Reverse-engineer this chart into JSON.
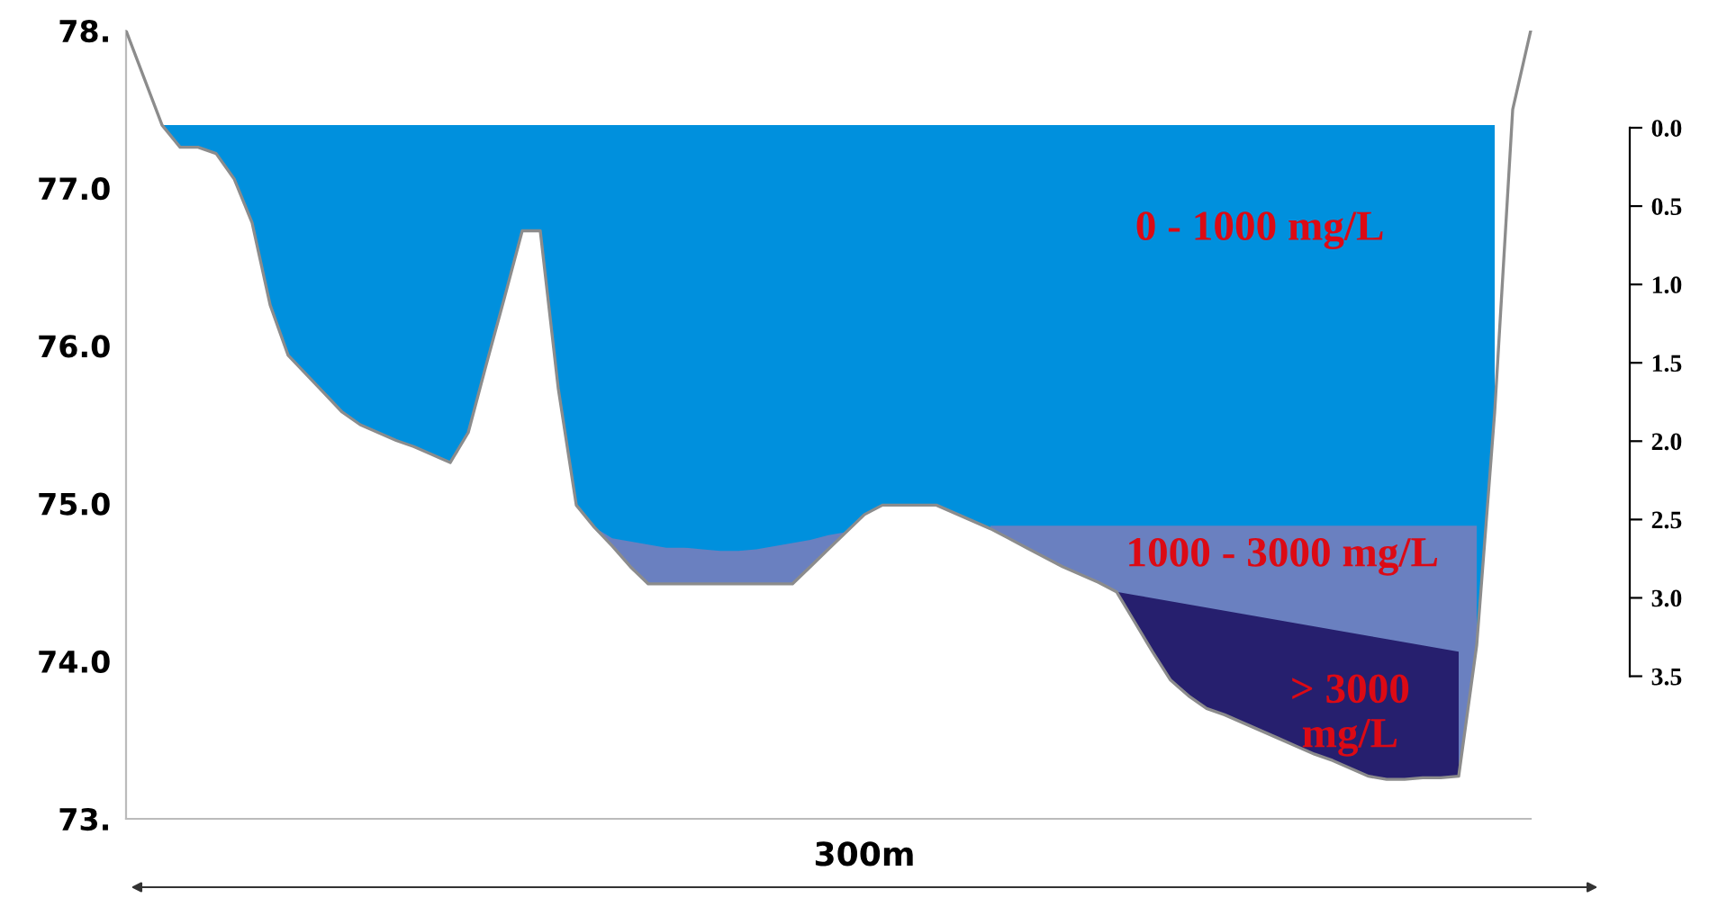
{
  "chart_data": {
    "type": "area",
    "categories": [
      null,
      null,
      null,
      null,
      null,
      null,
      null,
      null,
      null,
      null,
      null,
      null,
      null,
      null,
      null,
      null,
      null,
      null,
      null,
      null,
      null,
      null,
      null,
      null,
      null,
      null,
      null,
      null,
      null,
      null,
      null,
      null,
      null,
      null,
      null,
      null,
      null,
      null,
      null,
      null,
      null,
      null,
      null,
      null,
      null,
      null,
      null,
      null,
      null,
      null,
      null,
      null,
      null,
      null,
      null,
      null,
      null,
      null,
      null,
      null,
      null,
      null,
      null,
      null,
      null,
      null,
      null,
      null,
      null,
      null,
      null,
      null,
      null,
      null,
      null,
      null,
      null,
      null,
      null
    ],
    "ylim": [
      73,
      78
    ],
    "yticks": [
      {
        "value": 73,
        "label": "73."
      },
      {
        "value": 74,
        "label": "74.0"
      },
      {
        "value": 75,
        "label": "75.0"
      },
      {
        "value": 76,
        "label": "76.0"
      },
      {
        "value": 77,
        "label": "77.0"
      },
      {
        "value": 78,
        "label": "78."
      }
    ],
    "y2lim": [
      4.41,
      -0.62
    ],
    "y2ticks": [
      {
        "value": 0,
        "label": "0.0"
      },
      {
        "value": 0.5,
        "label": "0.5"
      },
      {
        "value": 1,
        "label": "1.0"
      },
      {
        "value": 1.5,
        "label": "1.5"
      },
      {
        "value": 2,
        "label": "2.0"
      },
      {
        "value": 2.5,
        "label": "2.5"
      },
      {
        "value": 3,
        "label": "3.0"
      },
      {
        "value": 3.5,
        "label": "3.5"
      }
    ],
    "grid": false,
    "legend": false,
    "annotations": [
      "300m"
    ],
    "series": [
      {
        "type": "line",
        "color": "#8c8c8c",
        "values": [
          78.0,
          77.7,
          77.4,
          77.26,
          77.26,
          77.22,
          77.06,
          76.78,
          76.26,
          75.94,
          75.82,
          75.7,
          75.58,
          75.5,
          75.45,
          75.4,
          75.36,
          75.31,
          75.26,
          75.45,
          75.88,
          76.3,
          76.73,
          76.73,
          75.73,
          74.99,
          74.85,
          74.73,
          74.6,
          74.49,
          74.49,
          74.49,
          74.49,
          74.49,
          74.49,
          74.49,
          74.49,
          74.49,
          74.6,
          74.71,
          74.82,
          74.93,
          74.99,
          74.99,
          74.99,
          74.99,
          74.94,
          74.89,
          74.84,
          74.78,
          74.72,
          74.66,
          74.6,
          74.55,
          74.5,
          74.44,
          74.25,
          74.06,
          73.88,
          73.78,
          73.7,
          73.66,
          73.61,
          73.56,
          73.51,
          73.46,
          73.41,
          73.37,
          73.32,
          73.27,
          73.25,
          73.25,
          73.26,
          73.26,
          73.27,
          74.1,
          75.58,
          77.5,
          78.0
        ]
      },
      {
        "name": "0 - 1000 mg/L",
        "color": "#0090dd",
        "values": [
          null,
          null,
          77.4,
          77.4,
          77.4,
          77.4,
          77.4,
          77.4,
          77.4,
          77.4,
          77.4,
          77.4,
          77.4,
          77.4,
          77.4,
          77.4,
          77.4,
          77.4,
          77.4,
          77.4,
          77.4,
          77.4,
          77.4,
          77.4,
          77.4,
          77.4,
          77.4,
          77.4,
          77.4,
          77.4,
          77.4,
          77.4,
          77.4,
          77.4,
          77.4,
          77.4,
          77.4,
          77.4,
          77.4,
          77.4,
          77.4,
          77.4,
          77.4,
          77.4,
          77.4,
          77.4,
          77.4,
          77.4,
          77.4,
          77.4,
          77.4,
          77.4,
          77.4,
          77.4,
          77.4,
          77.4,
          77.4,
          77.4,
          77.4,
          77.4,
          77.4,
          77.4,
          77.4,
          77.4,
          77.4,
          77.4,
          77.4,
          77.4,
          77.4,
          77.4,
          77.4,
          77.4,
          77.4,
          77.4,
          77.4,
          77.4,
          77.4,
          null,
          null
        ]
      },
      {
        "name": "1000 - 3000 mg/L",
        "color": "#6a80c0",
        "values": [
          null,
          null,
          null,
          null,
          null,
          null,
          null,
          null,
          null,
          null,
          null,
          null,
          null,
          null,
          null,
          null,
          null,
          null,
          null,
          null,
          null,
          null,
          null,
          null,
          null,
          null,
          74.85,
          74.78,
          74.76,
          74.74,
          74.72,
          74.72,
          74.71,
          74.7,
          74.7,
          74.71,
          74.73,
          74.75,
          74.77,
          74.8,
          74.82,
          null,
          null,
          null,
          null,
          null,
          null,
          null,
          74.86,
          74.86,
          74.86,
          74.86,
          74.86,
          74.86,
          74.86,
          74.86,
          74.86,
          74.86,
          74.86,
          74.86,
          74.86,
          74.86,
          74.86,
          74.86,
          74.86,
          74.86,
          74.86,
          74.86,
          74.86,
          74.86,
          74.86,
          74.86,
          74.86,
          74.86,
          74.86,
          74.86,
          null,
          null,
          null
        ]
      },
      {
        "name": "> 3000\nmg/L",
        "color": "#261f6e",
        "values": [
          null,
          null,
          null,
          null,
          null,
          null,
          null,
          null,
          null,
          null,
          null,
          null,
          null,
          null,
          null,
          null,
          null,
          null,
          null,
          null,
          null,
          null,
          null,
          null,
          null,
          null,
          null,
          null,
          null,
          null,
          null,
          null,
          null,
          null,
          null,
          null,
          null,
          null,
          null,
          null,
          null,
          null,
          null,
          null,
          null,
          null,
          null,
          null,
          null,
          null,
          null,
          null,
          null,
          null,
          null,
          74.44,
          74.42,
          74.4,
          74.38,
          74.36,
          74.34,
          74.32,
          74.3,
          74.28,
          74.26,
          74.24,
          74.22,
          74.2,
          74.18,
          74.16,
          74.14,
          74.12,
          74.1,
          74.08,
          74.06,
          null,
          null,
          null,
          null
        ]
      }
    ]
  }
}
